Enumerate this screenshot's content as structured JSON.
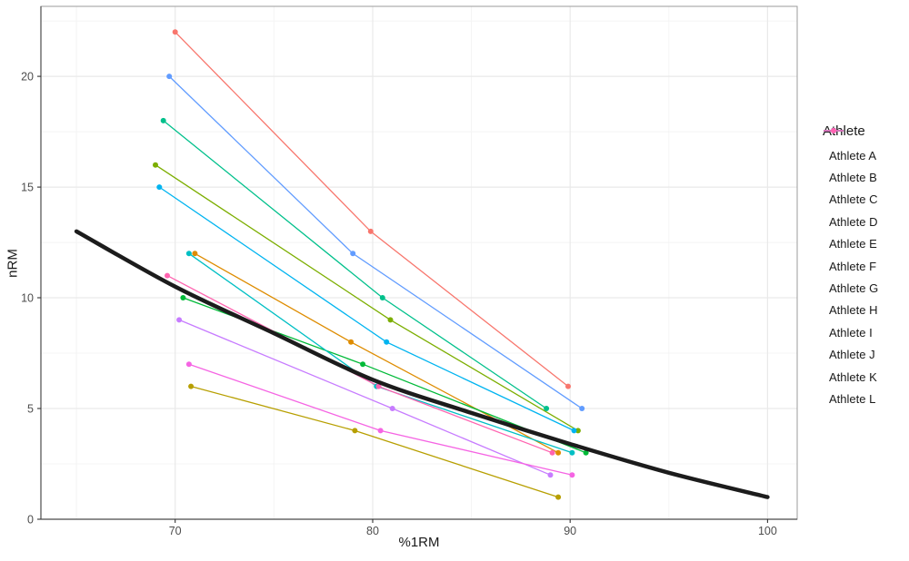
{
  "chart_data": {
    "type": "line",
    "title": "",
    "xlabel": "%1RM",
    "ylabel": "nRM",
    "legend_title": "Athlete",
    "legend_position": "right",
    "grid": true,
    "axis_ranges": {
      "x": [
        63.2,
        101.5
      ],
      "y": [
        0,
        23.16
      ]
    },
    "x_ticks": [
      70,
      80,
      90,
      100
    ],
    "x_tick_labels": [
      "70",
      "80",
      "90",
      "100"
    ],
    "y_ticks": [
      0,
      5,
      10,
      15,
      20
    ],
    "y_tick_labels": [
      "0",
      "5",
      "10",
      "15",
      "20"
    ],
    "x_minor_ticks": [
      65,
      75,
      85,
      95
    ],
    "y_minor_ticks": [
      2.5,
      7.5,
      12.5,
      17.5,
      22.5
    ],
    "series": [
      {
        "name": "Athlete A",
        "color": "#F8766D",
        "points": [
          [
            70.0,
            22
          ],
          [
            79.9,
            13
          ],
          [
            89.9,
            6
          ]
        ]
      },
      {
        "name": "Athlete B",
        "color": "#DE8C00",
        "points": [
          [
            71.0,
            12
          ],
          [
            78.9,
            8
          ],
          [
            89.4,
            3
          ]
        ]
      },
      {
        "name": "Athlete C",
        "color": "#B79F00",
        "points": [
          [
            70.8,
            6
          ],
          [
            79.1,
            4
          ],
          [
            89.4,
            1
          ]
        ]
      },
      {
        "name": "Athlete D",
        "color": "#7CAE00",
        "points": [
          [
            69.0,
            16
          ],
          [
            80.9,
            9
          ],
          [
            90.4,
            4
          ]
        ]
      },
      {
        "name": "Athlete E",
        "color": "#00BA38",
        "points": [
          [
            70.4,
            10
          ],
          [
            79.5,
            7
          ],
          [
            90.8,
            3
          ]
        ]
      },
      {
        "name": "Athlete F",
        "color": "#00C08B",
        "points": [
          [
            69.4,
            18
          ],
          [
            80.5,
            10
          ],
          [
            88.8,
            5
          ]
        ]
      },
      {
        "name": "Athlete G",
        "color": "#00BFC4",
        "points": [
          [
            70.7,
            12
          ],
          [
            80.2,
            6
          ],
          [
            90.1,
            3
          ]
        ]
      },
      {
        "name": "Athlete H",
        "color": "#00B4F0",
        "points": [
          [
            69.2,
            15
          ],
          [
            80.7,
            8
          ],
          [
            90.2,
            4
          ]
        ]
      },
      {
        "name": "Athlete I",
        "color": "#619CFF",
        "points": [
          [
            69.7,
            20
          ],
          [
            79.0,
            12
          ],
          [
            90.6,
            5
          ]
        ]
      },
      {
        "name": "Athlete J",
        "color": "#C77CFF",
        "points": [
          [
            70.2,
            9
          ],
          [
            81.0,
            5
          ],
          [
            89.0,
            2
          ]
        ]
      },
      {
        "name": "Athlete K",
        "color": "#F564E3",
        "points": [
          [
            70.7,
            7
          ],
          [
            80.4,
            4
          ],
          [
            90.1,
            2
          ]
        ]
      },
      {
        "name": "Athlete L",
        "color": "#FF64B0",
        "points": [
          [
            69.6,
            11
          ],
          [
            80.3,
            6
          ],
          [
            89.1,
            3
          ]
        ]
      }
    ],
    "reference_curve": {
      "name": "reference-curve",
      "color": "#1C1C1C",
      "stroke_width": 4.5,
      "points": [
        [
          65,
          13
        ],
        [
          70,
          10.5
        ],
        [
          75,
          8.4
        ],
        [
          80,
          6.3
        ],
        [
          85,
          4.8
        ],
        [
          90,
          3.4
        ],
        [
          95,
          2.1
        ],
        [
          100,
          1.0
        ]
      ]
    },
    "style": {
      "panel_bg": "#FFFFFF",
      "panel_border": "#9B9B9B",
      "axis_line": "#4C4C4C",
      "grid_major": "#E9E9E9",
      "grid_minor": "#F4F4F4",
      "tick_color": "#333333",
      "tick_label_color": "#4D4D4D",
      "point_radius": 3,
      "line_width": 1.3
    }
  }
}
